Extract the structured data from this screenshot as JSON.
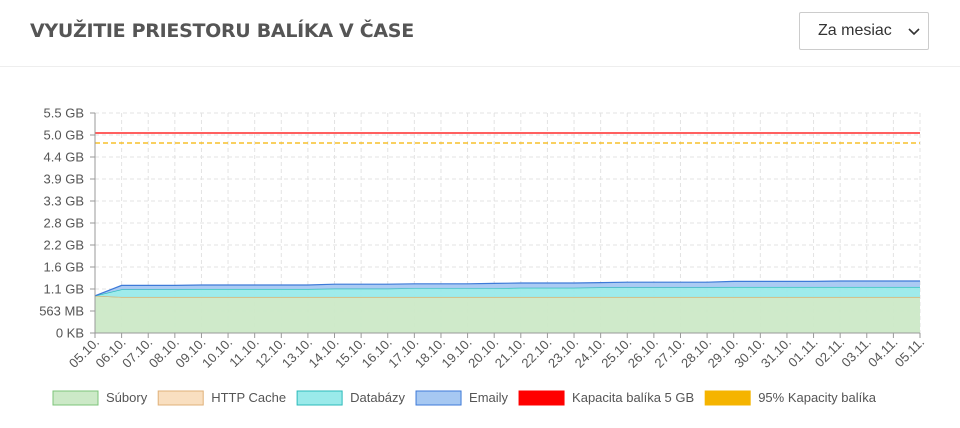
{
  "header": {
    "title": "VYUŽITIE PRIESTORU BALÍKA V ČASE",
    "range_select": "Za mesiac"
  },
  "chart_data": {
    "type": "stacked_area",
    "categories": [
      "05.10.",
      "06.10.",
      "07.10.",
      "08.10.",
      "09.10.",
      "10.10.",
      "11.10.",
      "12.10.",
      "13.10.",
      "14.10.",
      "15.10.",
      "16.10.",
      "17.10.",
      "18.10.",
      "19.10.",
      "20.10.",
      "21.10.",
      "22.10.",
      "23.10.",
      "24.10.",
      "25.10.",
      "26.10.",
      "27.10.",
      "28.10.",
      "29.10.",
      "30.10.",
      "31.10.",
      "01.11.",
      "02.11.",
      "03.11.",
      "04.11.",
      "05.11."
    ],
    "ylim": [
      0,
      5.5
    ],
    "yticks": [
      {
        "value": 0,
        "label": "0 KB"
      },
      {
        "value": 0.55,
        "label": "563 MB"
      },
      {
        "value": 1.1,
        "label": "1.1 GB"
      },
      {
        "value": 1.65,
        "label": "1.6 GB"
      },
      {
        "value": 2.2,
        "label": "2.2 GB"
      },
      {
        "value": 2.75,
        "label": "2.8 GB"
      },
      {
        "value": 3.3,
        "label": "3.3 GB"
      },
      {
        "value": 3.85,
        "label": "3.9 GB"
      },
      {
        "value": 4.4,
        "label": "4.4 GB"
      },
      {
        "value": 4.95,
        "label": "5.0 GB"
      },
      {
        "value": 5.5,
        "label": "5.5 GB"
      }
    ],
    "grid": true,
    "series": [
      {
        "name": "Súbory",
        "color": "#cce9c7",
        "stroke": "#7cc47a",
        "values": [
          0.93,
          0.9,
          0.9,
          0.9,
          0.9,
          0.9,
          0.9,
          0.9,
          0.9,
          0.9,
          0.9,
          0.9,
          0.9,
          0.9,
          0.9,
          0.9,
          0.9,
          0.9,
          0.9,
          0.9,
          0.9,
          0.9,
          0.9,
          0.9,
          0.9,
          0.9,
          0.9,
          0.9,
          0.9,
          0.9,
          0.9,
          0.9
        ]
      },
      {
        "name": "HTTP Cache",
        "color": "#f9dfc0",
        "stroke": "#e0b078",
        "values": [
          0,
          0,
          0,
          0,
          0,
          0,
          0,
          0,
          0,
          0,
          0,
          0,
          0,
          0,
          0,
          0,
          0,
          0,
          0,
          0,
          0,
          0,
          0,
          0,
          0,
          0,
          0,
          0,
          0,
          0,
          0,
          0
        ]
      },
      {
        "name": "Databázy",
        "color": "#9aeaea",
        "stroke": "#2bbaba",
        "values": [
          0,
          0.19,
          0.19,
          0.19,
          0.2,
          0.2,
          0.2,
          0.2,
          0.2,
          0.21,
          0.21,
          0.21,
          0.22,
          0.22,
          0.22,
          0.22,
          0.23,
          0.23,
          0.23,
          0.24,
          0.24,
          0.24,
          0.24,
          0.24,
          0.25,
          0.25,
          0.25,
          0.25,
          0.25,
          0.25,
          0.25,
          0.25
        ]
      },
      {
        "name": "Emaily",
        "color": "#a6c8f2",
        "stroke": "#3d7ad8",
        "values": [
          0,
          0.1,
          0.1,
          0.1,
          0.1,
          0.1,
          0.1,
          0.1,
          0.1,
          0.11,
          0.11,
          0.11,
          0.11,
          0.11,
          0.11,
          0.12,
          0.12,
          0.12,
          0.12,
          0.12,
          0.13,
          0.13,
          0.13,
          0.13,
          0.14,
          0.14,
          0.14,
          0.14,
          0.15,
          0.15,
          0.15,
          0.15
        ]
      },
      {
        "name": "Kapacita balíka 5 GB",
        "color": "#ff0000",
        "value": 5
      },
      {
        "name": "95% Kapacity balíka",
        "color": "#f5b400",
        "value": 4.75,
        "dashed": true
      }
    ]
  }
}
